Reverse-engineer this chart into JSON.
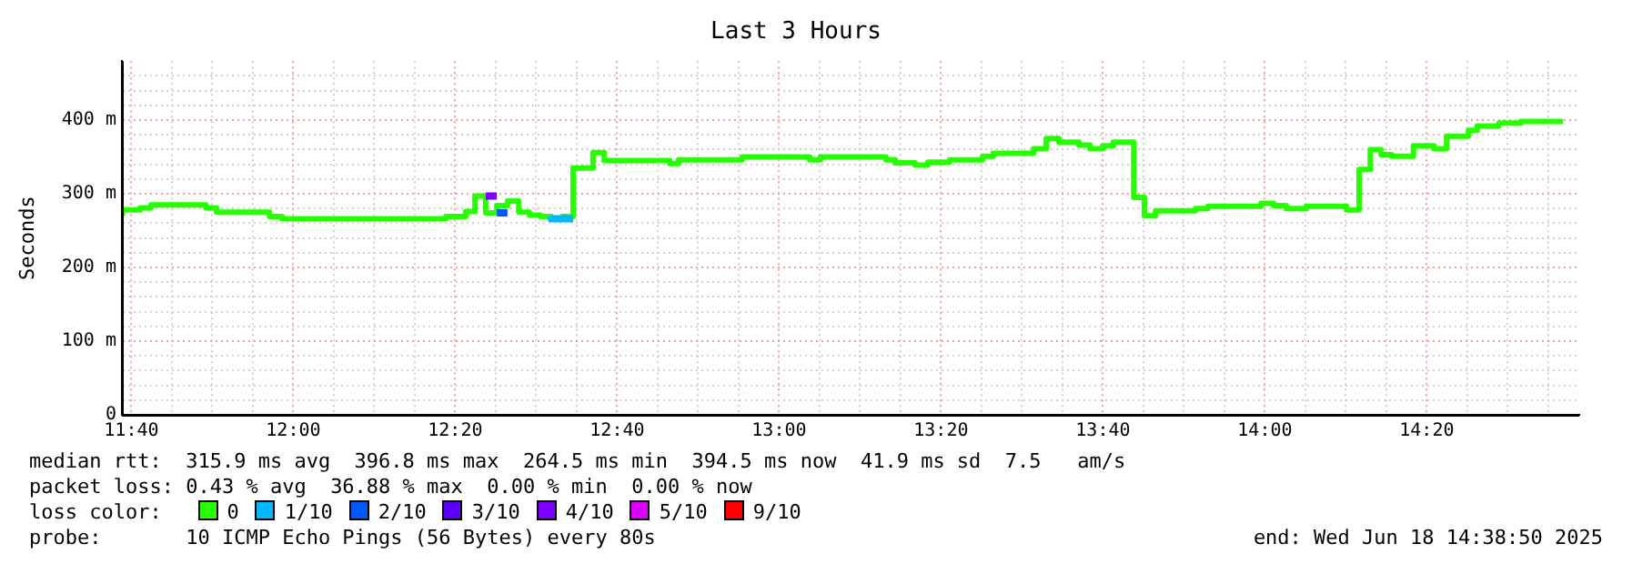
{
  "chart_data": {
    "type": "step",
    "title": "Last 3 Hours",
    "ylabel": "Seconds",
    "xlim": [
      11.6472,
      14.6472
    ],
    "ylim": [
      0,
      480
    ],
    "xticks": [
      {
        "value": 11.6667,
        "label": "11:40"
      },
      {
        "value": 11.75,
        "label": null
      },
      {
        "value": 11.8333,
        "label": null
      },
      {
        "value": 11.9167,
        "label": null
      },
      {
        "value": 12,
        "label": "12:00"
      },
      {
        "value": 12.0833,
        "label": null
      },
      {
        "value": 12.1667,
        "label": null
      },
      {
        "value": 12.25,
        "label": null
      },
      {
        "value": 12.3333,
        "label": "12:20"
      },
      {
        "value": 12.4167,
        "label": null
      },
      {
        "value": 12.5,
        "label": null
      },
      {
        "value": 12.5833,
        "label": null
      },
      {
        "value": 12.6667,
        "label": "12:40"
      },
      {
        "value": 12.75,
        "label": null
      },
      {
        "value": 12.8333,
        "label": null
      },
      {
        "value": 12.9167,
        "label": null
      },
      {
        "value": 13,
        "label": "13:00"
      },
      {
        "value": 13.0833,
        "label": null
      },
      {
        "value": 13.1667,
        "label": null
      },
      {
        "value": 13.25,
        "label": null
      },
      {
        "value": 13.3333,
        "label": "13:20"
      },
      {
        "value": 13.4167,
        "label": null
      },
      {
        "value": 13.5,
        "label": null
      },
      {
        "value": 13.5833,
        "label": null
      },
      {
        "value": 13.6667,
        "label": "13:40"
      },
      {
        "value": 13.75,
        "label": null
      },
      {
        "value": 13.8333,
        "label": null
      },
      {
        "value": 13.9167,
        "label": null
      },
      {
        "value": 14,
        "label": "14:00"
      },
      {
        "value": 14.0833,
        "label": null
      },
      {
        "value": 14.1667,
        "label": null
      },
      {
        "value": 14.25,
        "label": null
      },
      {
        "value": 14.3333,
        "label": "14:20"
      },
      {
        "value": 14.4167,
        "label": null
      },
      {
        "value": 14.5,
        "label": null
      },
      {
        "value": 14.5833,
        "label": null
      }
    ],
    "yticks": [
      0,
      {
        "value": 20,
        "label": null
      },
      {
        "value": 40,
        "label": null
      },
      {
        "value": 60,
        "label": null
      },
      {
        "value": 80,
        "label": null
      },
      {
        "value": 100,
        "label": "100 m"
      },
      {
        "value": 120,
        "label": null
      },
      {
        "value": 140,
        "label": null
      },
      {
        "value": 160,
        "label": null
      },
      {
        "value": 180,
        "label": null
      },
      {
        "value": 200,
        "label": "200 m"
      },
      {
        "value": 220,
        "label": null
      },
      {
        "value": 240,
        "label": null
      },
      {
        "value": 260,
        "label": null
      },
      {
        "value": 280,
        "label": null
      },
      {
        "value": 300,
        "label": "300 m"
      },
      {
        "value": 320,
        "label": null
      },
      {
        "value": 340,
        "label": null
      },
      {
        "value": 360,
        "label": null
      },
      {
        "value": 380,
        "label": null
      },
      {
        "value": 400,
        "label": "400 m"
      },
      {
        "value": 420,
        "label": null
      },
      {
        "value": 440,
        "label": null
      },
      {
        "value": 460,
        "label": null
      }
    ],
    "grid": true,
    "legend": "bottom",
    "legend_title": "loss color:",
    "series": [
      {
        "name": "0",
        "color": "#26ff00",
        "x": [
          11.648,
          11.685,
          11.707,
          11.82,
          11.842,
          11.951,
          11.977,
          12.314,
          12.355,
          12.374,
          12.396,
          12.419,
          12.441,
          12.464,
          12.486,
          12.509,
          12.531,
          12.554,
          12.576,
          12.617,
          12.64,
          12.775,
          12.793,
          12.924,
          13.063,
          13.085,
          13.22,
          13.239,
          13.28,
          13.306,
          13.351,
          13.419,
          13.441,
          13.524,
          13.55,
          13.576,
          13.617,
          13.64,
          13.666,
          13.688,
          13.73,
          13.752,
          13.775,
          13.857,
          13.883,
          13.992,
          14.018,
          14.044,
          14.085,
          14.168,
          14.194,
          14.217,
          14.239,
          14.261,
          14.306,
          14.348,
          14.374,
          14.419,
          14.437,
          14.482,
          14.527,
          14.55,
          14.614
        ],
        "values": [
          270,
          278,
          281,
          285,
          281,
          275,
          269,
          266,
          269,
          276,
          297,
          274,
          284,
          290,
          275,
          271,
          269,
          266,
          269,
          335,
          356,
          345,
          341,
          346,
          350,
          346,
          350,
          346,
          342,
          339,
          343,
          346,
          351,
          355,
          361,
          375,
          370,
          366,
          361,
          365,
          370,
          295,
          270,
          277,
          280,
          283,
          287,
          284,
          280,
          283,
          278,
          333,
          360,
          353,
          351,
          365,
          361,
          378,
          386,
          392,
          396,
          398,
          398
        ]
      },
      {
        "name": "1/10",
        "color": "#00b8ff",
        "x": [
          12.531,
          12.554,
          12.576
        ],
        "values": [
          269,
          266,
          266
        ]
      },
      {
        "name": "2/10",
        "color": "#0059ff",
        "x": [
          12.419,
          12.441
        ],
        "values": [
          274,
          274
        ]
      },
      {
        "name": "3/10",
        "color": "#5e00ff"
      },
      {
        "name": "4/10",
        "color": "#7e00ff",
        "x": [
          12.396,
          12.419
        ],
        "values": [
          297,
          297
        ]
      },
      {
        "name": "5/10",
        "color": "#dd00ff"
      },
      {
        "name": "9/10",
        "color": "#ff0000"
      }
    ],
    "annotations": [
      "median rtt:  315.9 ms avg  396.8 ms max  264.5 ms min  394.5 ms now  41.9 ms sd  7.5   am/s",
      "packet loss: 0.43 % avg  36.88 % max  0.00 % min  0.00 % now",
      "probe:       10 ICMP Echo Pings (56 Bytes) every 80s",
      "end: Wed Jun 18 14:38:50 2025"
    ]
  }
}
